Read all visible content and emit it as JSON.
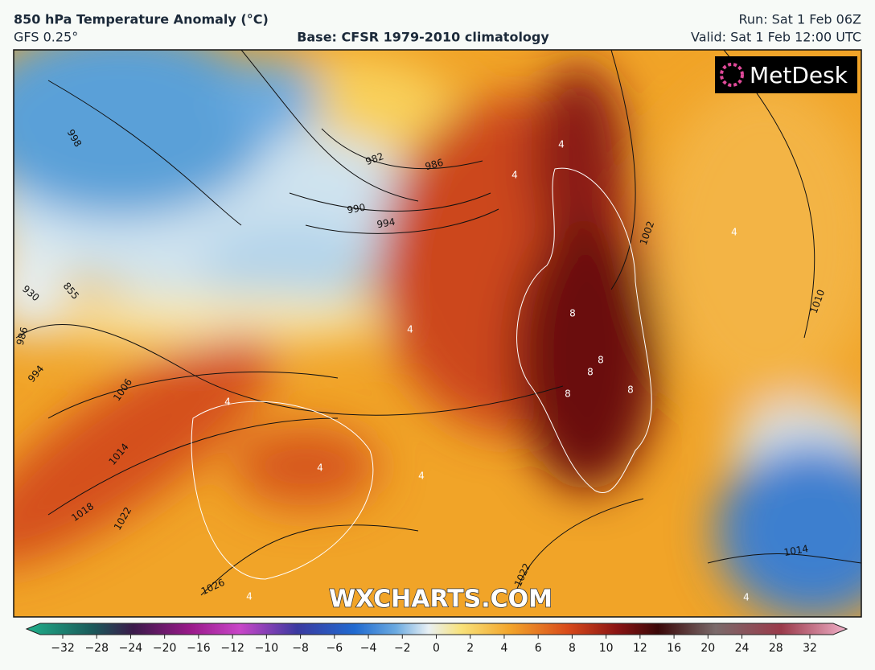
{
  "header": {
    "title": "850 hPa Temperature Anomaly (°C)",
    "model": "GFS 0.25°",
    "base": "Base: CFSR 1979-2010 climatology",
    "run": "Run: Sat 1 Feb 06Z",
    "valid": "Valid: Sat 1 Feb 12:00 UTC"
  },
  "map": {
    "logo": "MetDesk",
    "watermark": "WXCHARTS.COM",
    "isobar_labels": [
      998,
      982,
      986,
      990,
      994,
      1002,
      1010,
      1006,
      1014,
      1018,
      1022,
      1026,
      1022,
      994,
      986,
      930,
      855,
      1014
    ],
    "anomaly_labels": [
      4,
      8,
      8,
      8,
      8,
      8,
      4,
      4,
      4,
      4,
      4,
      4,
      4,
      4
    ]
  },
  "colorbar": {
    "ticks": [
      {
        "value": -32,
        "label": "−32"
      },
      {
        "value": -28,
        "label": "−28"
      },
      {
        "value": -24,
        "label": "−24"
      },
      {
        "value": -20,
        "label": "−20"
      },
      {
        "value": -16,
        "label": "−16"
      },
      {
        "value": -12,
        "label": "−12"
      },
      {
        "value": -10,
        "label": "−10"
      },
      {
        "value": -8,
        "label": "−8"
      },
      {
        "value": -6,
        "label": "−6"
      },
      {
        "value": -4,
        "label": "−4"
      },
      {
        "value": -2,
        "label": "−2"
      },
      0,
      2,
      4,
      6,
      8,
      10,
      12,
      16,
      20,
      24,
      28,
      32
    ]
  }
}
